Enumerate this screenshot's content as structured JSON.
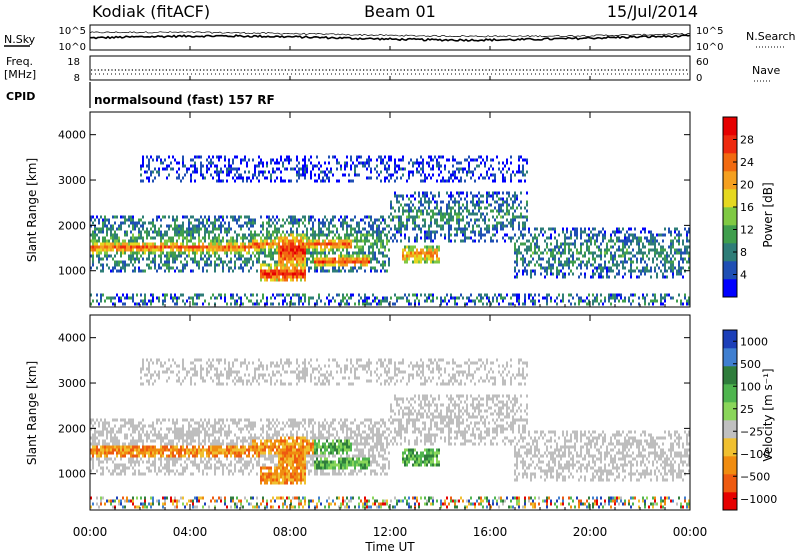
{
  "header": {
    "station": "Kodiak (fitACF)",
    "beam": "Beam 01",
    "date": "15/Jul/2014"
  },
  "top_panels": {
    "nsky_label": "N.Sky",
    "nsearch_label": "N.Search",
    "nsky_ticks": [
      "10^5",
      "10^0"
    ],
    "nsearch_ticks": [
      "10^5",
      "10^0"
    ],
    "freq_label_1": "Freq.",
    "freq_label_2": "[MHz]",
    "freq_ticks": [
      "18",
      "8"
    ],
    "nave_label": "Nave",
    "nave_ticks": [
      "60",
      "0"
    ],
    "cpid_label": "CPID",
    "cpid_text": "normalsound (fast) 157 RF"
  },
  "colors": {
    "power": [
      "#0000ff",
      "#1f4fb4",
      "#2e7d78",
      "#3f9e4d",
      "#7fc943",
      "#e5d820",
      "#f5a020",
      "#f26a10",
      "#ee2a0e",
      "#e60000"
    ],
    "velocity": [
      "#1c3fb8",
      "#3f7fd0",
      "#2f7d3c",
      "#4fb54f",
      "#8ad65a",
      "#c0c0c0",
      "#f0c030",
      "#f08c10",
      "#ee5a10",
      "#e60000"
    ],
    "ground_scatter": "#bebebe"
  },
  "chart_data": [
    {
      "type": "heatmap",
      "name": "power",
      "ylabel": "Slant Range [km]",
      "ylim": [
        200,
        4500
      ],
      "y_ticks": [
        "1000",
        "2000",
        "3000",
        "4000"
      ],
      "y_tick_values": [
        1000,
        2000,
        3000,
        4000
      ],
      "xlim_hours": [
        0,
        24
      ],
      "colorbar_label": "Power [dB]",
      "colorbar_ticks": [
        "4",
        "8",
        "12",
        "16",
        "20",
        "24",
        "28"
      ],
      "colorbar_tick_values": [
        4,
        8,
        12,
        16,
        20,
        24,
        28
      ],
      "colorbar_range": [
        0,
        32
      ]
    },
    {
      "type": "heatmap",
      "name": "velocity",
      "ylabel": "Slant Range [km]",
      "ylim": [
        200,
        4500
      ],
      "y_ticks": [
        "1000",
        "2000",
        "3000",
        "4000"
      ],
      "y_tick_values": [
        1000,
        2000,
        3000,
        4000
      ],
      "xlim_hours": [
        0,
        24
      ],
      "colorbar_label": "Velocity [m s⁻¹]",
      "colorbar_ticks": [
        "1000",
        "500",
        "100",
        "25",
        "−25",
        "−100",
        "−500",
        "−1000"
      ]
    }
  ],
  "x_axis": {
    "label": "Time UT",
    "ticks": [
      "00:00",
      "04:00",
      "08:00",
      "12:00",
      "16:00",
      "20:00",
      "00:00"
    ],
    "tick_hours": [
      0,
      4,
      8,
      12,
      16,
      20,
      24
    ]
  },
  "echo_bands": [
    {
      "t0": 0.0,
      "t1": 6.8,
      "r0": 1350,
      "r1": 1600,
      "kind": "ionos",
      "intensity": 0.8
    },
    {
      "t0": 6.5,
      "t1": 10.5,
      "r0": 1400,
      "r1": 1700,
      "kind": "ionos",
      "intensity": 0.75
    },
    {
      "t0": 6.8,
      "t1": 8.6,
      "r0": 700,
      "r1": 1100,
      "kind": "ionos",
      "intensity": 0.9
    },
    {
      "t0": 7.5,
      "t1": 8.6,
      "r0": 1000,
      "r1": 1800,
      "kind": "ionos",
      "intensity": 0.9
    },
    {
      "t0": 9.0,
      "t1": 11.2,
      "r0": 1050,
      "r1": 1300,
      "kind": "ionos",
      "intensity": 0.85
    },
    {
      "t0": 12.5,
      "t1": 14.0,
      "r0": 1100,
      "r1": 1550,
      "kind": "ionos",
      "intensity": 0.7
    },
    {
      "t0": 0.0,
      "t1": 12.0,
      "r0": 900,
      "r1": 2200,
      "kind": "ground",
      "intensity": 0.35
    },
    {
      "t0": 12.0,
      "t1": 17.5,
      "r0": 1600,
      "r1": 2700,
      "kind": "ground",
      "intensity": 0.3
    },
    {
      "t0": 17.0,
      "t1": 24.0,
      "r0": 800,
      "r1": 1900,
      "kind": "ground",
      "intensity": 0.3
    },
    {
      "t0": 2.0,
      "t1": 17.5,
      "r0": 2900,
      "r1": 3500,
      "kind": "ground",
      "intensity": 0.12
    },
    {
      "t0": 0.0,
      "t1": 24.0,
      "r0": 200,
      "r1": 450,
      "kind": "noise",
      "intensity": 0.2
    }
  ]
}
